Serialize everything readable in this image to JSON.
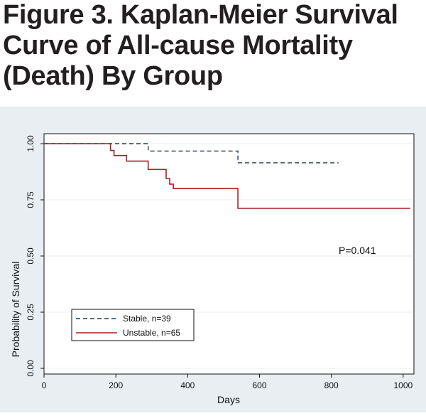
{
  "figure_title": "Figure 3. Kaplan-Meier Survival Curve of All-cause Mortality (Death) By Group",
  "colors": {
    "frame_bg": "#e9eef2",
    "plot_bg": "#ffffff",
    "grid": "#e8edf1",
    "stable": "#1f3a5a",
    "unstable": "#a51f24"
  },
  "chart_data": {
    "type": "line",
    "title": "",
    "xlabel": "Days",
    "ylabel": "Probability of Survival",
    "xlim": [
      0,
      1030
    ],
    "ylim": [
      0,
      1
    ],
    "xticks": [
      "0",
      "200",
      "400",
      "600",
      "800",
      "1000"
    ],
    "yticks": [
      "0.00",
      "0.25",
      "0.50",
      "0.75",
      "1.00"
    ],
    "grid": true,
    "legend_position": "lower-left",
    "annotations": [
      "P=0.041"
    ],
    "series": [
      {
        "name": "Stable, n=39",
        "style": "dashed",
        "x": [
          0,
          290,
          290,
          540,
          540,
          820
        ],
        "y": [
          1.0,
          1.0,
          0.967,
          0.967,
          0.915,
          0.915
        ]
      },
      {
        "name": "Unstable, n=65",
        "style": "solid",
        "x": [
          0,
          185,
          185,
          195,
          195,
          230,
          230,
          290,
          290,
          340,
          340,
          350,
          350,
          360,
          360,
          540,
          540,
          1020
        ],
        "y": [
          1.0,
          1.0,
          0.97,
          0.97,
          0.947,
          0.947,
          0.922,
          0.922,
          0.885,
          0.885,
          0.845,
          0.845,
          0.82,
          0.82,
          0.8,
          0.8,
          0.712,
          0.712
        ]
      }
    ]
  }
}
